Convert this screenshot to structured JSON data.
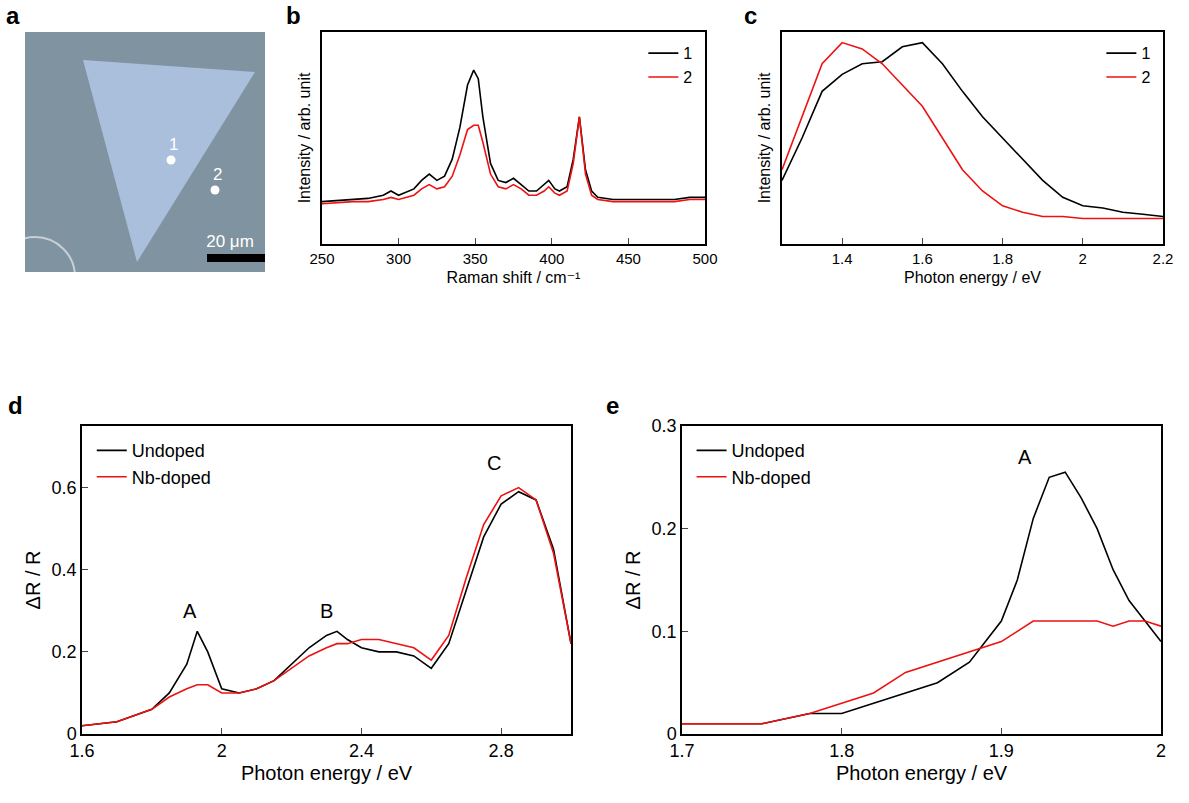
{
  "panel_a": {
    "panel_label": "a",
    "points": [
      "1",
      "2"
    ],
    "scale_bar": "20 μm"
  },
  "chart_data": [
    {
      "panel_label": "b",
      "type": "line",
      "x_label": "Raman shift / cm⁻¹",
      "y_label": "Intensity / arb. unit",
      "x": [
        250,
        260,
        270,
        280,
        290,
        295,
        300,
        310,
        315,
        320,
        325,
        330,
        335,
        340,
        345,
        349,
        352,
        355,
        360,
        365,
        370,
        375,
        380,
        385,
        390,
        395,
        398,
        402,
        405,
        410,
        414,
        418,
        422,
        426,
        430,
        440,
        450,
        460,
        470,
        480,
        490,
        500
      ],
      "series": [
        {
          "name": "1",
          "color": "#000000",
          "values": [
            0.2,
            0.205,
            0.21,
            0.215,
            0.23,
            0.25,
            0.23,
            0.26,
            0.3,
            0.33,
            0.3,
            0.32,
            0.4,
            0.55,
            0.75,
            0.82,
            0.78,
            0.6,
            0.38,
            0.3,
            0.29,
            0.31,
            0.28,
            0.25,
            0.25,
            0.28,
            0.3,
            0.26,
            0.25,
            0.27,
            0.4,
            0.6,
            0.35,
            0.25,
            0.22,
            0.21,
            0.21,
            0.21,
            0.21,
            0.21,
            0.22,
            0.22
          ]
        },
        {
          "name": "2",
          "color": "#ee1111",
          "values": [
            0.19,
            0.195,
            0.2,
            0.2,
            0.21,
            0.22,
            0.21,
            0.23,
            0.26,
            0.28,
            0.26,
            0.27,
            0.32,
            0.42,
            0.54,
            0.56,
            0.56,
            0.48,
            0.33,
            0.27,
            0.26,
            0.28,
            0.26,
            0.23,
            0.23,
            0.25,
            0.27,
            0.24,
            0.23,
            0.25,
            0.38,
            0.6,
            0.33,
            0.23,
            0.21,
            0.2,
            0.2,
            0.2,
            0.2,
            0.2,
            0.21,
            0.21
          ]
        }
      ],
      "xlim": [
        250,
        500
      ],
      "xticks": [
        250,
        300,
        350,
        400,
        450,
        500
      ],
      "ylim": [
        0,
        1
      ],
      "tick_labels": "x",
      "legend": "top right"
    },
    {
      "panel_label": "c",
      "type": "line",
      "x_label": "Photon energy / eV",
      "y_label": "Intensity / arb. unit",
      "x": [
        1.25,
        1.3,
        1.35,
        1.4,
        1.45,
        1.5,
        1.55,
        1.6,
        1.65,
        1.7,
        1.75,
        1.8,
        1.85,
        1.9,
        1.95,
        2.0,
        2.05,
        2.1,
        2.15,
        2.2
      ],
      "series": [
        {
          "name": "1",
          "color": "#000000",
          "values": [
            0.3,
            0.5,
            0.72,
            0.8,
            0.85,
            0.86,
            0.93,
            0.95,
            0.85,
            0.72,
            0.6,
            0.5,
            0.4,
            0.3,
            0.22,
            0.18,
            0.17,
            0.15,
            0.14,
            0.13
          ]
        },
        {
          "name": "2",
          "color": "#ee1111",
          "values": [
            0.35,
            0.6,
            0.85,
            0.95,
            0.92,
            0.85,
            0.75,
            0.65,
            0.5,
            0.35,
            0.25,
            0.18,
            0.15,
            0.13,
            0.13,
            0.12,
            0.12,
            0.12,
            0.12,
            0.12
          ]
        }
      ],
      "xlim": [
        1.25,
        2.2
      ],
      "xticks": [
        1.4,
        1.6,
        1.8,
        2,
        2.2
      ],
      "ylim": [
        0,
        1
      ],
      "tick_labels": "x",
      "legend": "top right"
    },
    {
      "panel_label": "d",
      "type": "line",
      "x_label": "Photon energy / eV",
      "y_label": "ΔR / R",
      "x": [
        1.6,
        1.7,
        1.8,
        1.85,
        1.9,
        1.93,
        1.96,
        2.0,
        2.05,
        2.1,
        2.15,
        2.2,
        2.25,
        2.3,
        2.33,
        2.36,
        2.4,
        2.45,
        2.5,
        2.55,
        2.6,
        2.65,
        2.7,
        2.75,
        2.8,
        2.85,
        2.9,
        2.95,
        3.0
      ],
      "series": [
        {
          "name": "Undoped",
          "color": "#000000",
          "values": [
            0.02,
            0.03,
            0.06,
            0.1,
            0.17,
            0.25,
            0.2,
            0.11,
            0.1,
            0.11,
            0.13,
            0.17,
            0.21,
            0.24,
            0.25,
            0.23,
            0.21,
            0.2,
            0.2,
            0.19,
            0.16,
            0.22,
            0.35,
            0.48,
            0.56,
            0.59,
            0.57,
            0.45,
            0.22
          ]
        },
        {
          "name": "Nb-doped",
          "color": "#ee1111",
          "values": [
            0.02,
            0.03,
            0.06,
            0.09,
            0.11,
            0.12,
            0.12,
            0.1,
            0.1,
            0.11,
            0.13,
            0.16,
            0.19,
            0.21,
            0.22,
            0.22,
            0.23,
            0.23,
            0.22,
            0.21,
            0.18,
            0.24,
            0.38,
            0.51,
            0.58,
            0.6,
            0.57,
            0.44,
            0.22
          ]
        }
      ],
      "annotations": [
        {
          "text": "A",
          "x": 1.91,
          "y": 0.3
        },
        {
          "text": "B",
          "x": 2.3,
          "y": 0.3
        },
        {
          "text": "C",
          "x": 2.78,
          "y": 0.66
        }
      ],
      "xlim": [
        1.6,
        3
      ],
      "xticks": [
        1.6,
        2,
        2.4,
        2.8
      ],
      "ylim": [
        0,
        0.75
      ],
      "yticks": [
        0,
        0.2,
        0.4,
        0.6
      ],
      "legend": "top left"
    },
    {
      "panel_label": "e",
      "type": "line",
      "x_label": "Photon energy / eV",
      "y_label": "ΔR / R",
      "x": [
        1.7,
        1.75,
        1.78,
        1.8,
        1.82,
        1.84,
        1.86,
        1.88,
        1.9,
        1.91,
        1.92,
        1.93,
        1.94,
        1.95,
        1.96,
        1.97,
        1.98,
        1.99,
        2.0
      ],
      "series": [
        {
          "name": "Undoped",
          "color": "#000000",
          "values": [
            0.01,
            0.01,
            0.02,
            0.02,
            0.03,
            0.04,
            0.05,
            0.07,
            0.11,
            0.15,
            0.21,
            0.25,
            0.255,
            0.23,
            0.2,
            0.16,
            0.13,
            0.11,
            0.09
          ]
        },
        {
          "name": "Nb-doped",
          "color": "#ee1111",
          "values": [
            0.01,
            0.01,
            0.02,
            0.03,
            0.04,
            0.06,
            0.07,
            0.08,
            0.09,
            0.1,
            0.11,
            0.11,
            0.11,
            0.11,
            0.11,
            0.105,
            0.11,
            0.11,
            0.105
          ]
        }
      ],
      "annotations": [
        {
          "text": "A",
          "x": 1.915,
          "y": 0.27
        }
      ],
      "xlim": [
        1.7,
        2
      ],
      "xticks": [
        1.7,
        1.8,
        1.9,
        2
      ],
      "ylim": [
        0,
        0.3
      ],
      "yticks": [
        0,
        0.1,
        0.2,
        0.3
      ],
      "legend": "top left"
    }
  ]
}
